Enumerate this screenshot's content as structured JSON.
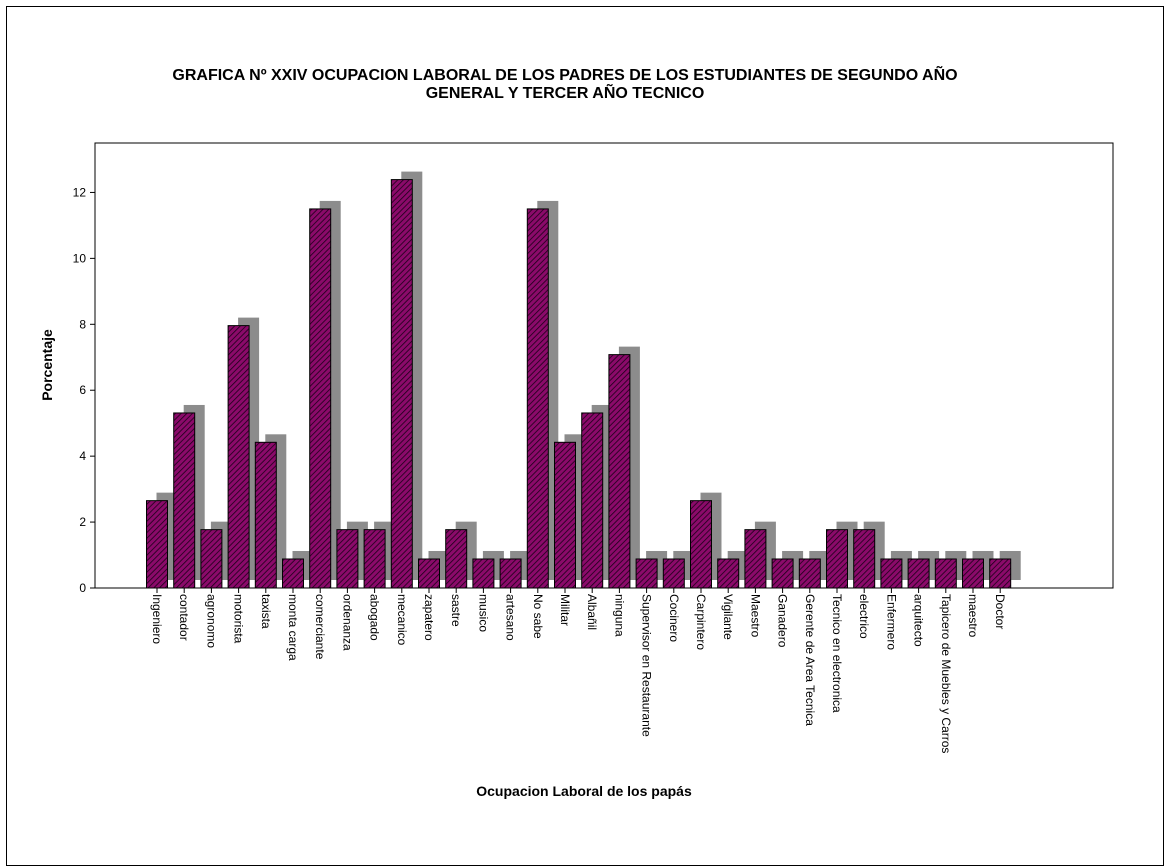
{
  "chart_data": {
    "type": "bar",
    "title": "GRAFICA Nº XXIV OCUPACION LABORAL DE LOS PADRES DE LOS ESTUDIANTES DE SEGUNDO AÑO GENERAL Y TERCER AÑO TECNICO",
    "title_lines": [
      "GRAFICA Nº XXIV OCUPACION LABORAL DE LOS PADRES DE LOS ESTUDIANTES DE SEGUNDO AÑO",
      "GENERAL Y TERCER AÑO TECNICO"
    ],
    "xlabel": "Ocupacion Laboral de los papás",
    "ylabel": "Porcentaje",
    "ylim": [
      0,
      13.5
    ],
    "yticks": [
      0,
      2,
      4,
      6,
      8,
      10,
      12
    ],
    "grid": false,
    "legend": "none",
    "categories": [
      "Ingeniero",
      "contador",
      "agronomo",
      "motorista",
      "taxista",
      "monta carga",
      "comerciante",
      "ordenanza",
      "abogado",
      "mecanico",
      "zapatero",
      "sastre",
      "musico",
      "artesano",
      "No sabe",
      "Militar",
      "Albañil",
      "ninguna",
      "Supervisor en Restaurante",
      "Cocinero",
      "Carpintero",
      "Vigilante",
      "Maestro",
      "Ganadero",
      "Gerente de Area Tecnica",
      "Tecnico en electronica",
      "electrico",
      "Enfermero",
      "arquitecto",
      "Tapicero de Muebles y Carros",
      "maestro",
      "Doctor"
    ],
    "values": [
      2.65,
      5.31,
      1.77,
      7.96,
      4.42,
      0.88,
      11.5,
      1.77,
      1.77,
      12.39,
      0.88,
      1.77,
      0.88,
      0.88,
      11.5,
      4.42,
      5.31,
      7.08,
      0.88,
      0.88,
      2.65,
      0.88,
      1.77,
      0.88,
      0.88,
      1.77,
      1.77,
      0.88,
      0.88,
      0.88,
      0.88,
      0.88
    ]
  },
  "colors": {
    "bar_fill": "#8b0a6a",
    "bar_hatch": "#1a0018",
    "shadow": "#8c8c8c",
    "axis": "#000000",
    "background": "#ffffff"
  }
}
